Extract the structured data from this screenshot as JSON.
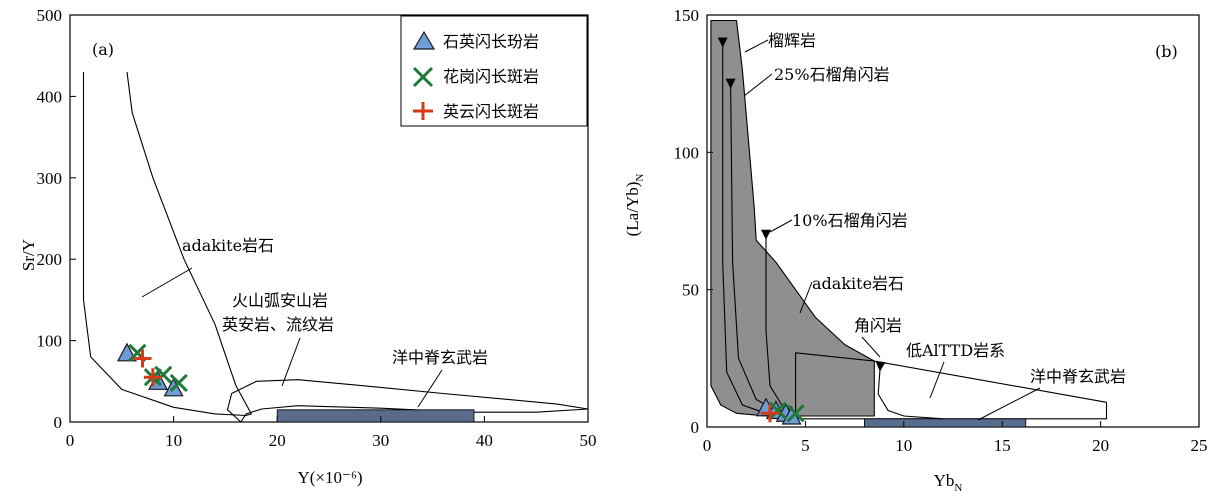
{
  "chart_data": [
    {
      "panel": "(a)",
      "type": "scatter",
      "xlabel": "Y(×10⁻⁶)",
      "ylabel": "Sr/Y",
      "xlim": [
        0,
        50
      ],
      "ylim": [
        0,
        500
      ],
      "xticks": [
        "0",
        "10",
        "20",
        "30",
        "40",
        "50"
      ],
      "yticks": [
        "0",
        "100",
        "200",
        "300",
        "400",
        "500"
      ],
      "legend_position": "top-right",
      "series": [
        {
          "name": "石英闪长玢岩",
          "marker": "triangle",
          "color": "#6f9bd6",
          "points": [
            [
              5.5,
              85
            ],
            [
              8.5,
              50
            ],
            [
              10,
              42
            ]
          ]
        },
        {
          "name": "花岗闪长斑岩",
          "marker": "x",
          "color": "#1f7a3a",
          "points": [
            [
              6.5,
              85
            ],
            [
              8,
              55
            ],
            [
              9,
              58
            ],
            [
              10.5,
              48
            ]
          ]
        },
        {
          "name": "英云闪长斑岩",
          "marker": "plus",
          "color": "#d43a1a",
          "points": [
            [
              7,
              78
            ],
            [
              8,
              55
            ]
          ]
        }
      ],
      "fields": [
        {
          "label": "adakite岩石",
          "kind": "outline",
          "points": [
            [
              1.3,
              430
            ],
            [
              1.3,
              150
            ],
            [
              2,
              80
            ],
            [
              5,
              40
            ],
            [
              10,
              18
            ],
            [
              14,
              10
            ],
            [
              17,
              8
            ],
            [
              17.5,
              10
            ],
            [
              16,
              45
            ],
            [
              14,
              120
            ],
            [
              11,
              200
            ],
            [
              8,
              300
            ],
            [
              6,
              380
            ],
            [
              5.5,
              430
            ]
          ]
        },
        {
          "label": "火山弧安山岩\n英安岩、流纹岩",
          "kind": "outline",
          "points": [
            [
              16.5,
              0
            ],
            [
              15.2,
              15
            ],
            [
              15.6,
              35
            ],
            [
              18,
              50
            ],
            [
              22,
              52
            ],
            [
              28,
              45
            ],
            [
              36,
              35
            ],
            [
              42,
              28
            ],
            [
              47,
              22
            ],
            [
              50,
              16
            ],
            [
              45,
              12
            ],
            [
              38,
              12
            ],
            [
              30,
              17
            ],
            [
              22,
              20
            ],
            [
              18.5,
              16
            ],
            [
              17,
              10
            ],
            [
              16.5,
              0
            ]
          ]
        },
        {
          "label": "洋中脊玄武岩",
          "kind": "filled",
          "points": [
            [
              20,
              0
            ],
            [
              39,
              0
            ],
            [
              39,
              15
            ],
            [
              20,
              15
            ]
          ]
        }
      ],
      "labels": [
        "(a)",
        "adakite岩石",
        "火山弧安山岩",
        "英安岩、流纹岩",
        "洋中脊玄武岩"
      ]
    },
    {
      "panel": "(b)",
      "type": "scatter",
      "xlabel": "Yb_N",
      "ylabel": "(La/Yb)_N",
      "xlim": [
        0,
        25
      ],
      "ylim": [
        0,
        150
      ],
      "xticks": [
        "0",
        "5",
        "10",
        "15",
        "20",
        "25"
      ],
      "yticks": [
        "0",
        "50",
        "100",
        "150"
      ],
      "series": [
        {
          "name": "石英闪长玢岩",
          "marker": "triangle",
          "color": "#6f9bd6",
          "points": [
            [
              3.0,
              7
            ],
            [
              3.5,
              6
            ],
            [
              4.0,
              5
            ],
            [
              4.3,
              4
            ]
          ]
        },
        {
          "name": "花岗闪长斑岩",
          "marker": "x",
          "color": "#1f7a3a",
          "points": [
            [
              3.6,
              6
            ],
            [
              4.5,
              5
            ]
          ]
        },
        {
          "name": "英云闪长斑岩",
          "marker": "plus",
          "color": "#d43a1a",
          "points": [
            [
              3.2,
              5
            ]
          ]
        }
      ],
      "fields": [
        {
          "label": "adakite岩石",
          "kind": "filled",
          "points": [
            [
              0.2,
              148
            ],
            [
              1.5,
              148
            ],
            [
              1.8,
              130
            ],
            [
              2.1,
              105
            ],
            [
              2.4,
              80
            ],
            [
              2.5,
              68
            ],
            [
              3.5,
              60
            ],
            [
              4.5,
              50
            ],
            [
              5.5,
              40
            ],
            [
              7,
              30
            ],
            [
              8.5,
              24
            ],
            [
              8.5,
              4
            ],
            [
              5,
              4
            ],
            [
              3,
              4
            ],
            [
              1.5,
              5
            ],
            [
              0.7,
              8
            ],
            [
              0.2,
              15
            ],
            [
              0.2,
              148
            ]
          ]
        },
        {
          "label": "低AlTTD岩系",
          "kind": "outline",
          "points": [
            [
              4.5,
              27
            ],
            [
              8.5,
              24
            ],
            [
              20.3,
              9
            ],
            [
              20.3,
              3
            ],
            [
              4.5,
              3
            ],
            [
              4.5,
              27
            ]
          ]
        },
        {
          "label": "洋中脊玄武岩",
          "kind": "filled",
          "points": [
            [
              8,
              0
            ],
            [
              16.2,
              0
            ],
            [
              16.2,
              3
            ],
            [
              8,
              3
            ]
          ]
        }
      ],
      "curves": [
        {
          "label": "榴辉岩",
          "points": [
            [
              0.8,
              140
            ],
            [
              0.8,
              60
            ],
            [
              1.0,
              20
            ],
            [
              1.8,
              8
            ],
            [
              3,
              5
            ],
            [
              4,
              5
            ]
          ]
        },
        {
          "label": "25%石榴角闪岩",
          "points": [
            [
              1.2,
              125
            ],
            [
              1.3,
              60
            ],
            [
              1.6,
              25
            ],
            [
              2.5,
              10
            ],
            [
              3.5,
              6
            ],
            [
              4.5,
              5
            ]
          ]
        },
        {
          "label": "10%石榴角闪岩",
          "points": [
            [
              3.0,
              70
            ],
            [
              3.0,
              35
            ],
            [
              3.2,
              15
            ],
            [
              3.8,
              8
            ],
            [
              4.5,
              5
            ]
          ]
        },
        {
          "label": "角闪岩",
          "points": [
            [
              8.8,
              22
            ],
            [
              8.7,
              12
            ],
            [
              9.2,
              6
            ],
            [
              10,
              4
            ],
            [
              12,
              3
            ]
          ]
        }
      ],
      "labels": [
        "(b)",
        "榴辉岩",
        "25%石榴角闪岩",
        "10%石榴角闪岩",
        "adakite岩石",
        "角闪岩",
        "低AlTTD岩系",
        "洋中脊玄武岩"
      ]
    }
  ],
  "legend": [
    {
      "label": "石英闪长玢岩",
      "marker": "triangle"
    },
    {
      "label": "花岗闪长斑岩",
      "marker": "x"
    },
    {
      "label": "英云闪长斑岩",
      "marker": "plus"
    }
  ],
  "colors": {
    "triangle_fill": "#6f9bd6",
    "triangle_stroke": "#1a1a1a",
    "x": "#1f7a3a",
    "plus": "#d43a1a",
    "mantle_fill": "#5a6c8e",
    "adakite_fill": "#8f8f8f"
  }
}
